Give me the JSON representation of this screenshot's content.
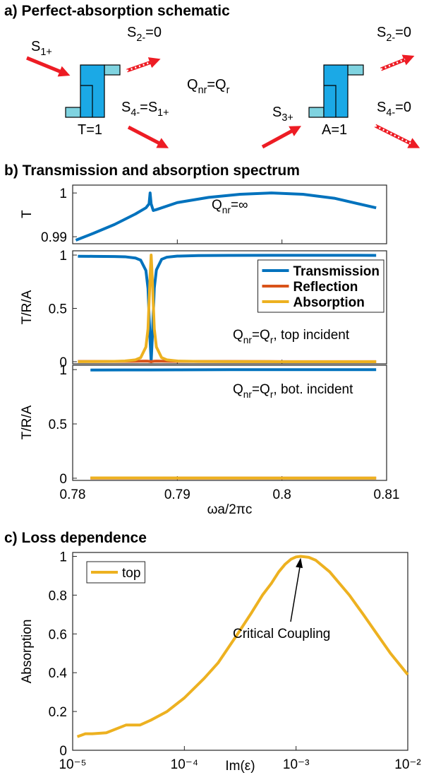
{
  "panel_a": {
    "title": "a) Perfect-absorption schematic",
    "labels": [
      [
        "S",
        "1+"
      ],
      [
        "S",
        "2-",
        "=0"
      ],
      [
        "S",
        "4-",
        "=S",
        "1+"
      ],
      [
        "T=1"
      ],
      [
        "Q",
        "nr",
        "=Q",
        "r"
      ],
      [
        "S",
        "3+"
      ],
      [
        "A=1"
      ],
      [
        "S",
        "2-",
        "=0"
      ],
      [
        "S",
        "4-",
        "=0"
      ]
    ]
  },
  "chart_data": [
    {
      "type": "line",
      "title": "b) Transmission and absorption spectrum",
      "ylabel": "T",
      "annotation": [
        "Q",
        "nr",
        "=∞"
      ],
      "xlim": [
        0.78,
        0.81
      ],
      "xticks": [
        0.78,
        0.79,
        0.8,
        0.81
      ],
      "ylim": [
        0.9884,
        1.0018
      ],
      "yticks": [
        0.99,
        1
      ],
      "x": [
        0.7803,
        0.782,
        0.784,
        0.786,
        0.787,
        0.7873,
        0.7874,
        0.7875,
        0.7877,
        0.788,
        0.79,
        0.793,
        0.796,
        0.799,
        0.802,
        0.805,
        0.809
      ],
      "series": [
        {
          "color": "#0072BD",
          "values": [
            0.9892,
            0.9908,
            0.9928,
            0.9952,
            0.9966,
            0.9975,
            1.0,
            0.9975,
            0.996,
            0.9962,
            0.9978,
            0.999,
            0.9997,
            1.0,
            0.9997,
            0.9988,
            0.9966
          ]
        }
      ]
    },
    {
      "type": "line",
      "ylabel": "T/R/A",
      "annotation": [
        "Q",
        "nr",
        "=Q",
        "r",
        ", top incident"
      ],
      "legend": "upper right",
      "xlim": [
        0.78,
        0.81
      ],
      "xticks": [
        0.78,
        0.79,
        0.8,
        0.81
      ],
      "ylim": [
        -0.02,
        1.04
      ],
      "yticks": [
        0,
        0.5,
        1
      ],
      "x": [
        0.7805,
        0.782,
        0.784,
        0.785,
        0.786,
        0.7865,
        0.787,
        0.7872,
        0.7874,
        0.7875,
        0.7876,
        0.7878,
        0.788,
        0.7885,
        0.789,
        0.79,
        0.792,
        0.795,
        0.8,
        0.805,
        0.809
      ],
      "series": [
        {
          "name": "Transmission",
          "color": "#0072BD",
          "values": [
            0.989,
            0.988,
            0.986,
            0.984,
            0.972,
            0.952,
            0.855,
            0.685,
            0.195,
            0,
            0.2,
            0.69,
            0.86,
            0.96,
            0.98,
            0.99,
            0.995,
            0.997,
            0.998,
            0.998,
            0.997
          ]
        },
        {
          "name": "Reflection",
          "color": "#D95319",
          "values": [
            0.002,
            0.002,
            0.002,
            0.003,
            0.004,
            0.005,
            0.006,
            0.005,
            0.002,
            0,
            0.002,
            0.005,
            0.006,
            0.005,
            0.004,
            0.003,
            0.002,
            0.002,
            0.001,
            0.001,
            0.001
          ]
        },
        {
          "name": "Absorption",
          "color": "#EDB120",
          "values": [
            0.0008,
            0.0013,
            0.0033,
            0.0064,
            0.0175,
            0.038,
            0.138,
            0.308,
            0.8,
            1,
            0.8,
            0.308,
            0.138,
            0.038,
            0.0175,
            0.0064,
            0.002,
            0.0007,
            0.0003,
            0.0001,
            0.0001
          ]
        }
      ]
    },
    {
      "type": "line",
      "xlabel": "ωa/2πc",
      "ylabel": "T/R/A",
      "annotation": [
        "Q",
        "nr",
        "=Q",
        "r",
        ", bot. incident"
      ],
      "xlim": [
        0.78,
        0.81
      ],
      "xticks": [
        0.78,
        0.79,
        0.8,
        0.81
      ],
      "ylim": [
        -0.02,
        1.04
      ],
      "yticks": [
        0,
        0.5,
        1
      ],
      "x": [
        0.7817,
        0.785,
        0.7875,
        0.79,
        0.795,
        0.8,
        0.805,
        0.809
      ],
      "series": [
        {
          "color": "#0072BD",
          "values": [
            0.996,
            0.997,
            0.997,
            0.998,
            0.999,
            0.999,
            0.999,
            0.999
          ]
        },
        {
          "color": "#D95319",
          "values": [
            0.001,
            0.001,
            0.001,
            0.001,
            0.001,
            0.001,
            0.001,
            0.001
          ]
        },
        {
          "color": "#EDB120",
          "values": [
            0.003,
            0.003,
            0.003,
            0.002,
            0.002,
            0.001,
            0.001,
            0.001
          ]
        }
      ]
    },
    {
      "type": "line",
      "title": "c) Loss dependence",
      "xlabel": "Im(ε)",
      "ylabel": "Absorption",
      "annotation": [
        "Critical Coupling"
      ],
      "xscale": "log",
      "legend": "upper left",
      "xlim": [
        1e-05,
        0.01
      ],
      "xticks": [
        {
          "value": 1e-05,
          "label": "10⁻⁵"
        },
        {
          "value": 0.0001,
          "label": "10⁻⁴"
        },
        {
          "value": 0.001,
          "label": "10⁻³"
        },
        {
          "value": 0.01,
          "label": "10⁻²"
        }
      ],
      "ylim": [
        0,
        1.02
      ],
      "yticks": [
        0,
        0.2,
        0.4,
        0.6,
        0.8,
        1
      ],
      "x": [
        1.1e-05,
        1.3e-05,
        1.5e-05,
        2e-05,
        3e-05,
        4e-05,
        5e-05,
        7e-05,
        0.0001,
        0.00015,
        0.0002,
        0.0003,
        0.0004,
        0.0005,
        0.0006,
        0.0007,
        0.0008,
        0.0009,
        0.001,
        0.0011,
        0.0013,
        0.0015,
        0.002,
        0.003,
        0.004,
        0.005,
        0.007,
        0.01
      ],
      "series": [
        {
          "name": "top",
          "color": "#EDB120",
          "values": [
            0.07,
            0.085,
            0.085,
            0.09,
            0.13,
            0.13,
            0.155,
            0.2,
            0.27,
            0.37,
            0.45,
            0.6,
            0.71,
            0.8,
            0.86,
            0.92,
            0.96,
            0.985,
            0.997,
            1.0,
            0.995,
            0.98,
            0.92,
            0.8,
            0.7,
            0.62,
            0.5,
            0.39
          ]
        }
      ]
    }
  ]
}
